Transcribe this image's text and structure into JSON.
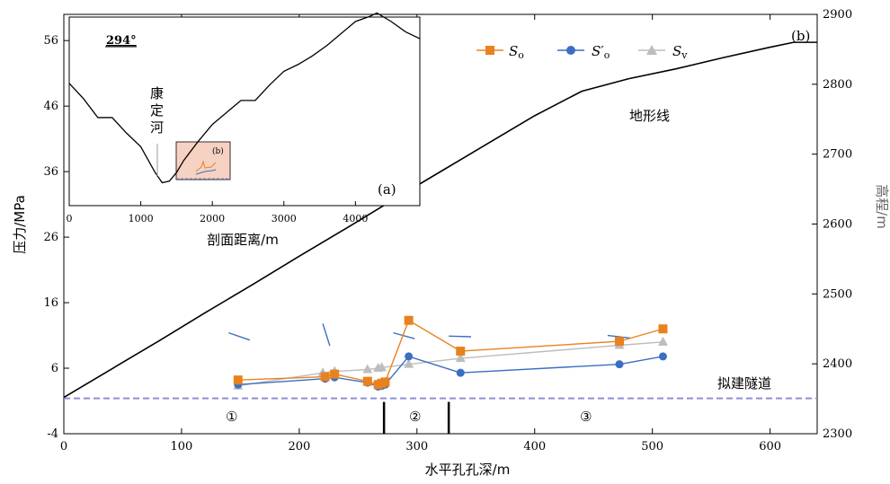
{
  "chart_data": [
    {
      "type": "line",
      "panel_label": "(b)",
      "xlabel": "水平孔孔深/m",
      "ylabel": "压力/MPa",
      "y2label": "高程/m",
      "xlim": [
        0,
        640
      ],
      "ylim": [
        -4,
        60
      ],
      "y2lim": [
        2300,
        2900
      ],
      "xticks": [
        0,
        100,
        200,
        300,
        400,
        500,
        600
      ],
      "yticks": [
        -4,
        6,
        16,
        26,
        36,
        46,
        56
      ],
      "y2ticks": [
        2300,
        2400,
        2500,
        2600,
        2700,
        2800,
        2900
      ],
      "legend": {
        "position": "top-right",
        "entries": [
          "S",
          "S′",
          "S"
        ],
        "subscripts": [
          "o",
          "o",
          "v"
        ]
      },
      "colors": {
        "So": "#E8821E",
        "Sprime": "#3B6FC2",
        "Sv": "#BDBDBD",
        "terrain": "#000000",
        "tunnel": "#8F8FD6"
      },
      "series": [
        {
          "name": "So",
          "x": [
            148,
            222,
            230,
            258,
            267,
            270,
            273,
            293,
            337,
            472,
            509
          ],
          "y": [
            4.2,
            4.7,
            5.1,
            4.0,
            3.5,
            3.7,
            3.9,
            13.3,
            8.6,
            10.1,
            12.0
          ]
        },
        {
          "name": "S′o",
          "x": [
            148,
            222,
            230,
            258,
            267,
            270,
            273,
            293,
            337,
            472,
            509
          ],
          "y": [
            3.5,
            4.4,
            4.6,
            3.8,
            3.2,
            3.3,
            3.5,
            7.8,
            5.3,
            6.6,
            7.8
          ]
        },
        {
          "name": "Sv",
          "x": [
            148,
            220,
            230,
            258,
            267,
            270,
            293,
            337,
            472,
            509
          ],
          "y": [
            3.3,
            5.3,
            5.5,
            5.8,
            6.0,
            6.1,
            6.6,
            7.5,
            9.5,
            10.0
          ]
        }
      ],
      "terrain": {
        "name": "地形线",
        "x": [
          0,
          40,
          80,
          120,
          160,
          200,
          240,
          280,
          320,
          360,
          400,
          440,
          480,
          520,
          560,
          600,
          620,
          640
        ],
        "elev": [
          2352,
          2392,
          2432,
          2473,
          2513,
          2554,
          2594,
          2635,
          2675,
          2715,
          2755,
          2790,
          2808,
          2822,
          2838,
          2853,
          2860,
          2860
        ]
      },
      "short_segments": [
        {
          "x": [
            140,
            158
          ],
          "y": [
            11.4,
            10.3
          ]
        },
        {
          "x": [
            220,
            226
          ],
          "y": [
            12.8,
            9.4
          ]
        },
        {
          "x": [
            280,
            298
          ],
          "y": [
            11.4,
            10.5
          ]
        },
        {
          "x": [
            327,
            346
          ],
          "y": [
            10.9,
            10.8
          ]
        },
        {
          "x": [
            462,
            481
          ],
          "y": [
            11.0,
            10.6
          ]
        }
      ],
      "tunnel_y": 1.4,
      "zone_boundaries": [
        272,
        327
      ],
      "zones": [
        "①",
        "②",
        "③"
      ],
      "annotations": {
        "terrain_label": "地形线",
        "tunnel_label": "拟建隧道"
      }
    },
    {
      "type": "line",
      "panel_label": "(a)",
      "title": "294°",
      "xlabel": "剖面距离/m",
      "xlim": [
        0,
        4900
      ],
      "xticks": [
        0,
        1000,
        2000,
        3000,
        4000
      ],
      "river_label": "康定河",
      "highlight_label": "(b)",
      "profile": {
        "x": [
          0,
          200,
          400,
          600,
          800,
          1000,
          1200,
          1300,
          1400,
          1500,
          1600,
          1800,
          2000,
          2200,
          2400,
          2600,
          2800,
          3000,
          3200,
          3400,
          3600,
          3800,
          4000,
          4200,
          4300,
          4500,
          4700,
          4900
        ],
        "y": [
          0.64,
          0.55,
          0.44,
          0.44,
          0.35,
          0.27,
          0.12,
          0.06,
          0.07,
          0.12,
          0.19,
          0.3,
          0.4,
          0.47,
          0.54,
          0.54,
          0.63,
          0.71,
          0.75,
          0.8,
          0.86,
          0.93,
          1.0,
          1.03,
          1.05,
          1.0,
          0.94,
          0.9
        ]
      }
    }
  ]
}
